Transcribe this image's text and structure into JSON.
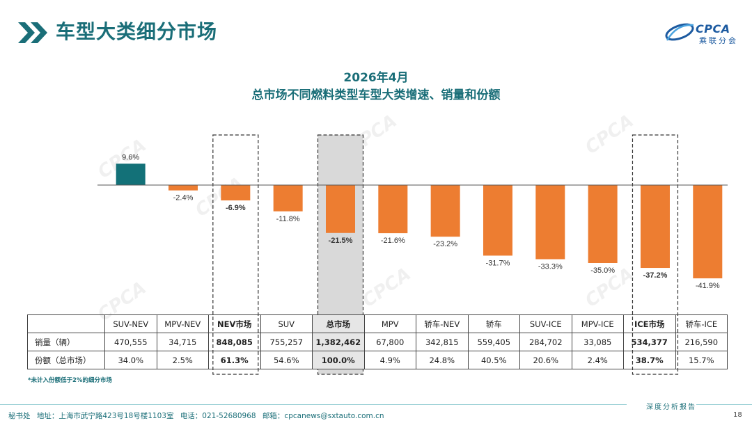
{
  "header": {
    "title": "车型大类细分市场",
    "logo_text": "CPCA",
    "logo_sub": "乘联分会"
  },
  "chart_data": {
    "type": "bar",
    "title": "2026年4月",
    "subtitle": "总市场不同燃料类型车型大类增速、销量和份额",
    "categories": [
      "SUV-NEV",
      "MPV-NEV",
      "NEV市场",
      "SUV",
      "总市场",
      "MPV",
      "轿车-NEV",
      "轿车",
      "SUV-ICE",
      "MPV-ICE",
      "ICE市场",
      "轿车-ICE"
    ],
    "series": [
      {
        "values": [
          9.6,
          -2.4,
          -6.9,
          -11.8,
          -21.5,
          -21.6,
          -23.2,
          -31.7,
          -33.3,
          -35.0,
          -37.2,
          -41.9
        ]
      }
    ],
    "value_labels": [
      "9.6%",
      "-2.4%",
      "-6.9%",
      "-11.8%",
      "-21.5%",
      "-21.6%",
      "-23.2%",
      "-31.7%",
      "-33.3%",
      "-35.0%",
      "-37.2%",
      "-41.9%"
    ],
    "bold_labels": [
      false,
      false,
      true,
      false,
      true,
      false,
      false,
      false,
      false,
      false,
      true,
      false
    ],
    "highlighted": [
      "NEV市场",
      "总市场",
      "ICE市场"
    ],
    "unit": "%",
    "ylim": [
      -45,
      12
    ],
    "grid": false,
    "colors": {
      "positive": "#137178",
      "negative": "#ed7d31"
    }
  },
  "table": {
    "headers": [
      "",
      "SUV-NEV",
      "MPV-NEV",
      "NEV市场",
      "SUV",
      "总市场",
      "MPV",
      "轿车-NEV",
      "轿车",
      "SUV-ICE",
      "MPV-ICE",
      "ICE市场",
      "轿车-ICE"
    ],
    "rows": [
      {
        "label": "销量（辆）",
        "values": [
          "470,555",
          "34,715",
          "848,085",
          "755,257",
          "1,382,462",
          "67,800",
          "342,815",
          "559,405",
          "284,702",
          "33,085",
          "534,377",
          "216,590"
        ]
      },
      {
        "label": "份额（总市场）",
        "values": [
          "34.0%",
          "2.5%",
          "61.3%",
          "54.6%",
          "100.0%",
          "4.9%",
          "24.8%",
          "40.5%",
          "20.6%",
          "2.4%",
          "38.7%",
          "15.7%"
        ]
      }
    ]
  },
  "footnote": "*未计入份额低于2%的细分市场",
  "footer": {
    "report_label": "深度分析报告",
    "department": "秘书处",
    "address": "地址：上海市武宁路423号18号楼1103室",
    "phone": "电话：021-52680968",
    "email": "邮箱：cpcanews@sxtauto.com.cn",
    "page_number": "18"
  },
  "colors": {
    "accent": "#1a6e78",
    "shade": "#d9d9d9"
  }
}
